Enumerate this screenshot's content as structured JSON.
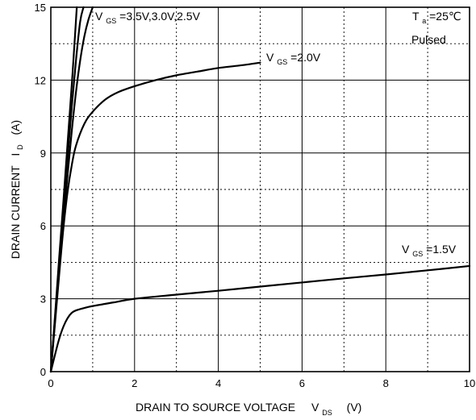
{
  "chart_data": {
    "type": "line",
    "xlabel": {
      "text": "DRAIN TO SOURCE VOLTAGE",
      "symbol": "V",
      "subscript": "DS",
      "unit": "(V)"
    },
    "ylabel": {
      "text": "DRAIN CURRENT",
      "symbol": "I",
      "subscript": "D",
      "unit": "(A)"
    },
    "xlim": [
      0,
      10
    ],
    "ylim": [
      0,
      15
    ],
    "x_ticks": [
      0,
      2,
      4,
      6,
      8,
      10
    ],
    "y_ticks": [
      0,
      3,
      6,
      9,
      12,
      15
    ],
    "grid": "major solid, minor dotted",
    "conditions": {
      "temp_symbol": "T",
      "temp_subscript": "a",
      "temp_value": "=25℃",
      "mode": "Pulsed"
    },
    "annotations": {
      "vgs_high": {
        "symbol": "V",
        "subscript": "GS",
        "value": "=3.5V,3.0V,2.5V"
      },
      "vgs_2": {
        "symbol": "V",
        "subscript": "GS",
        "value": "=2.0V"
      },
      "vgs_15": {
        "symbol": "V",
        "subscript": "GS",
        "value": "=1.5V"
      }
    },
    "series": [
      {
        "key": "vgs_3_5",
        "x": [
          0,
          0.1,
          0.2,
          0.3,
          0.4,
          0.5,
          0.58,
          0.62
        ],
        "y": [
          0,
          2.3,
          4.7,
          7.0,
          9.4,
          11.8,
          13.9,
          15
        ]
      },
      {
        "key": "vgs_3_0",
        "x": [
          0,
          0.1,
          0.2,
          0.3,
          0.4,
          0.5,
          0.6,
          0.7,
          0.78
        ],
        "y": [
          0,
          2.2,
          4.5,
          6.7,
          8.8,
          10.9,
          12.8,
          14.4,
          15
        ]
      },
      {
        "key": "vgs_2_5",
        "x": [
          0,
          0.1,
          0.2,
          0.3,
          0.4,
          0.5,
          0.6,
          0.7,
          0.8,
          0.9,
          1.0
        ],
        "y": [
          0,
          2.1,
          4.2,
          6.2,
          8.1,
          9.9,
          11.5,
          12.8,
          13.8,
          14.5,
          15
        ]
      },
      {
        "key": "vgs_2_0",
        "x": [
          0,
          0.1,
          0.2,
          0.3,
          0.4,
          0.5,
          0.6,
          0.8,
          1.0,
          1.3,
          1.6,
          2.0,
          2.5,
          3.0,
          3.5,
          4.0,
          4.5,
          5.0
        ],
        "y": [
          0,
          2.0,
          4.0,
          5.9,
          7.4,
          8.5,
          9.3,
          10.2,
          10.7,
          11.2,
          11.5,
          11.75,
          12.0,
          12.2,
          12.35,
          12.5,
          12.6,
          12.72
        ]
      },
      {
        "key": "vgs_1_5",
        "x": [
          0,
          0.1,
          0.2,
          0.3,
          0.4,
          0.5,
          0.6,
          0.8,
          1.0,
          1.5,
          2.0,
          3.0,
          4.0,
          5.0,
          6.0,
          7.0,
          8.0,
          9.0,
          10.0
        ],
        "y": [
          0,
          0.7,
          1.35,
          1.85,
          2.2,
          2.42,
          2.52,
          2.62,
          2.7,
          2.85,
          3.0,
          3.17,
          3.33,
          3.5,
          3.67,
          3.84,
          4.0,
          4.17,
          4.35
        ]
      }
    ]
  }
}
